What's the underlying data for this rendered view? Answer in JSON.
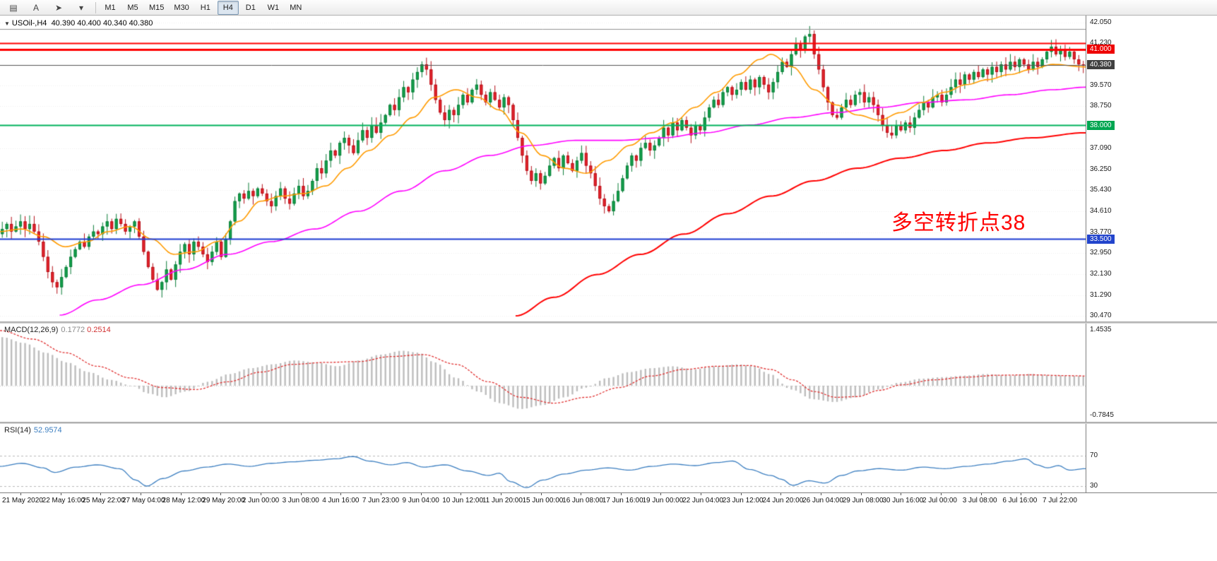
{
  "toolbar": {
    "icons": [
      {
        "name": "chart-window-icon",
        "glyph": "▤"
      },
      {
        "name": "text-annotation-icon",
        "glyph": "A"
      },
      {
        "name": "arrow-tool-icon",
        "glyph": "➤"
      },
      {
        "name": "tools-dropdown-icon",
        "glyph": "▾"
      }
    ],
    "timeframes": [
      "M1",
      "M5",
      "M15",
      "M30",
      "H1",
      "H4",
      "D1",
      "W1",
      "MN"
    ],
    "active_timeframe": "H4"
  },
  "chart_data": {
    "type": "candlestick",
    "collapse_icon": "▼",
    "symbol_title": "USOil-,H4",
    "ohlc_text": "40.390 40.400 40.340 40.380",
    "open": "40.390",
    "high": "40.400",
    "low": "40.340",
    "close": "40.380",
    "annotation": {
      "text": "多空转折点38",
      "color": "#ff0000"
    },
    "price_axis": {
      "min": 30.47,
      "max": 42.05,
      "labels": [
        42.05,
        41.23,
        39.57,
        38.75,
        37.09,
        36.25,
        35.43,
        34.61,
        33.77,
        32.95,
        32.13,
        31.29,
        30.47
      ]
    },
    "price_badges": [
      {
        "label": "41.000",
        "price": 41.0,
        "color": "#ee0000"
      },
      {
        "label": "40.380",
        "price": 40.38,
        "color": "#404040"
      },
      {
        "label": "38.000",
        "price": 38.0,
        "color": "#00a651"
      },
      {
        "label": "33.500",
        "price": 33.5,
        "color": "#2244cc"
      }
    ],
    "hlines": [
      {
        "price": 41.8,
        "color": "#909090",
        "width": 1
      },
      {
        "price": 41.23,
        "color": "#ff0000",
        "width": 2
      },
      {
        "price": 41.0,
        "color": "#ff0000",
        "width": 3
      },
      {
        "price": 38.0,
        "color": "#00b25c",
        "width": 2
      },
      {
        "price": 33.5,
        "color": "#1b3bd0",
        "width": 2
      }
    ],
    "current_price_line": {
      "price": 40.38,
      "color": "#555555"
    },
    "colors": {
      "bull": "#15a44e",
      "bull_edge": "#0b7c38",
      "bear": "#e8262e",
      "bear_edge": "#b40f18",
      "ma_fast": "#ff9b00",
      "ma_mid": "#ff00ff",
      "ma_slow": "#ff0000",
      "grid": "#ededed"
    },
    "candles": {
      "first_open": 33.7,
      "closes": [
        33.9,
        34.1,
        33.8,
        34.0,
        34.2,
        33.9,
        34.1,
        33.8,
        33.4,
        32.8,
        32.2,
        31.8,
        31.6,
        32.0,
        32.4,
        32.8,
        33.1,
        33.4,
        33.2,
        33.6,
        33.8,
        33.7,
        34.0,
        34.2,
        33.9,
        34.3,
        34.1,
        33.8,
        34.0,
        34.2,
        33.6,
        33.0,
        32.4,
        31.9,
        31.5,
        31.8,
        32.3,
        31.9,
        32.5,
        33.0,
        33.3,
        32.9,
        33.4,
        33.2,
        32.9,
        32.6,
        33.0,
        33.4,
        32.8,
        33.5,
        34.2,
        35.0,
        35.3,
        35.1,
        35.4,
        35.2,
        35.5,
        35.3,
        35.0,
        34.8,
        35.2,
        35.5,
        35.1,
        34.9,
        35.3,
        35.6,
        35.2,
        35.4,
        35.8,
        36.3,
        36.1,
        36.6,
        37.0,
        36.8,
        37.3,
        37.5,
        37.2,
        36.9,
        37.4,
        37.8,
        37.5,
        38.0,
        37.7,
        38.1,
        38.4,
        38.8,
        38.6,
        39.1,
        39.5,
        39.3,
        39.8,
        40.1,
        40.4,
        40.2,
        39.6,
        39.0,
        38.5,
        38.2,
        38.6,
        38.4,
        38.8,
        39.2,
        38.9,
        39.4,
        39.6,
        39.2,
        38.9,
        39.3,
        39.0,
        38.7,
        39.1,
        38.8,
        38.2,
        37.5,
        36.8,
        36.2,
        35.8,
        36.1,
        35.7,
        36.0,
        36.4,
        36.7,
        36.3,
        36.8,
        36.5,
        36.2,
        36.6,
        36.9,
        36.4,
        36.1,
        35.6,
        35.1,
        34.8,
        34.6,
        35.0,
        35.4,
        35.9,
        36.4,
        36.8,
        36.6,
        37.1,
        37.3,
        37.0,
        37.2,
        37.5,
        37.9,
        37.6,
        38.1,
        37.8,
        38.2,
        37.9,
        37.6,
        38.0,
        37.8,
        38.3,
        38.7,
        39.0,
        38.8,
        39.3,
        39.5,
        39.2,
        39.4,
        39.7,
        39.4,
        39.8,
        39.5,
        39.9,
        39.6,
        39.3,
        39.7,
        40.1,
        40.5,
        40.3,
        40.8,
        41.2,
        41.0,
        41.5,
        41.6,
        40.8,
        40.2,
        39.5,
        38.9,
        38.4,
        38.3,
        38.7,
        39.0,
        38.8,
        39.2,
        39.3,
        38.9,
        39.1,
        38.8,
        38.4,
        38.0,
        37.7,
        37.6,
        38.0,
        37.8,
        38.1,
        37.9,
        38.3,
        38.6,
        38.9,
        38.7,
        39.1,
        39.2,
        38.9,
        39.2,
        39.5,
        39.8,
        39.6,
        40.0,
        39.8,
        40.1,
        39.9,
        40.2,
        40.0,
        40.3,
        40.1,
        40.4,
        40.2,
        40.5,
        40.3,
        40.6,
        40.4,
        40.2,
        40.5,
        40.3,
        40.6,
        40.9,
        41.1,
        40.8,
        41.0,
        40.7,
        40.9,
        40.6,
        40.4,
        40.38
      ]
    },
    "ma_fast": [
      [
        0,
        33.8
      ],
      [
        0.02,
        33.9
      ],
      [
        0.04,
        33.6
      ],
      [
        0.06,
        33.2
      ],
      [
        0.08,
        33.4
      ],
      [
        0.1,
        33.8
      ],
      [
        0.12,
        34.0
      ],
      [
        0.14,
        33.5
      ],
      [
        0.16,
        32.9
      ],
      [
        0.18,
        33.0
      ],
      [
        0.2,
        33.4
      ],
      [
        0.22,
        34.2
      ],
      [
        0.24,
        35.0
      ],
      [
        0.26,
        35.2
      ],
      [
        0.28,
        35.3
      ],
      [
        0.3,
        35.6
      ],
      [
        0.32,
        36.3
      ],
      [
        0.34,
        37.0
      ],
      [
        0.36,
        37.6
      ],
      [
        0.38,
        38.3
      ],
      [
        0.4,
        39.1
      ],
      [
        0.42,
        39.4
      ],
      [
        0.44,
        39.1
      ],
      [
        0.46,
        38.6
      ],
      [
        0.48,
        37.7
      ],
      [
        0.5,
        36.8
      ],
      [
        0.52,
        36.3
      ],
      [
        0.54,
        36.1
      ],
      [
        0.56,
        36.6
      ],
      [
        0.58,
        37.2
      ],
      [
        0.6,
        37.7
      ],
      [
        0.62,
        38.1
      ],
      [
        0.64,
        38.7
      ],
      [
        0.66,
        39.3
      ],
      [
        0.68,
        40.0
      ],
      [
        0.7,
        40.6
      ],
      [
        0.71,
        40.8
      ],
      [
        0.73,
        40.3
      ],
      [
        0.75,
        39.4
      ],
      [
        0.77,
        38.8
      ],
      [
        0.79,
        38.4
      ],
      [
        0.81,
        38.2
      ],
      [
        0.83,
        38.5
      ],
      [
        0.85,
        38.9
      ],
      [
        0.87,
        39.3
      ],
      [
        0.89,
        39.6
      ],
      [
        0.91,
        39.8
      ],
      [
        0.93,
        40.0
      ],
      [
        0.95,
        40.2
      ],
      [
        0.97,
        40.4
      ],
      [
        1,
        40.3
      ]
    ],
    "ma_mid": [
      [
        0.055,
        30.5
      ],
      [
        0.09,
        31.1
      ],
      [
        0.13,
        31.7
      ],
      [
        0.17,
        32.3
      ],
      [
        0.21,
        32.9
      ],
      [
        0.25,
        33.4
      ],
      [
        0.29,
        33.9
      ],
      [
        0.33,
        34.6
      ],
      [
        0.37,
        35.4
      ],
      [
        0.41,
        36.2
      ],
      [
        0.45,
        36.8
      ],
      [
        0.49,
        37.2
      ],
      [
        0.53,
        37.4
      ],
      [
        0.57,
        37.4
      ],
      [
        0.61,
        37.5
      ],
      [
        0.65,
        37.7
      ],
      [
        0.69,
        38.0
      ],
      [
        0.73,
        38.3
      ],
      [
        0.77,
        38.5
      ],
      [
        0.81,
        38.7
      ],
      [
        0.85,
        38.9
      ],
      [
        0.89,
        39.0
      ],
      [
        0.93,
        39.2
      ],
      [
        0.97,
        39.4
      ],
      [
        1,
        39.5
      ]
    ],
    "ma_slow": [
      [
        0.475,
        30.47
      ],
      [
        0.51,
        31.2
      ],
      [
        0.55,
        32.1
      ],
      [
        0.59,
        32.9
      ],
      [
        0.63,
        33.7
      ],
      [
        0.67,
        34.5
      ],
      [
        0.71,
        35.2
      ],
      [
        0.75,
        35.8
      ],
      [
        0.79,
        36.3
      ],
      [
        0.83,
        36.7
      ],
      [
        0.87,
        37.0
      ],
      [
        0.91,
        37.3
      ],
      [
        0.95,
        37.5
      ],
      [
        1,
        37.7
      ]
    ],
    "time_labels": [
      "21 May 2020",
      "22 May 16:00",
      "25 May 22:00",
      "27 May 04:00",
      "28 May 12:00",
      "29 May 20:00",
      "2 Jun 00:00",
      "3 Jun 08:00",
      "4 Jun 16:00",
      "7 Jun 23:00",
      "9 Jun 04:00",
      "10 Jun 12:00",
      "11 Jun 20:00",
      "15 Jun 00:00",
      "16 Jun 08:00",
      "17 Jun 16:00",
      "19 Jun 00:00",
      "22 Jun 04:00",
      "23 Jun 12:00",
      "24 Jun 20:00",
      "26 Jun 04:00",
      "29 Jun 08:00",
      "30 Jun 16:00",
      "2 Jul 00:00",
      "3 Jul 08:00",
      "6 Jul 16:00",
      "7 Jul 22:00"
    ]
  },
  "macd": {
    "label": "MACD(12,26,9)",
    "value": "0.1772",
    "signal_value": "0.2514",
    "axis_max": 1.4535,
    "axis_min": -0.7845,
    "axis_max_label": "1.4535",
    "axis_min_label": "-0.7845",
    "hist": [
      [
        0,
        1.25
      ],
      [
        0.02,
        1.1
      ],
      [
        0.04,
        0.85
      ],
      [
        0.06,
        0.6
      ],
      [
        0.08,
        0.35
      ],
      [
        0.1,
        0.15
      ],
      [
        0.12,
        0.0
      ],
      [
        0.135,
        -0.2
      ],
      [
        0.15,
        -0.3
      ],
      [
        0.17,
        -0.15
      ],
      [
        0.19,
        0.1
      ],
      [
        0.21,
        0.3
      ],
      [
        0.23,
        0.45
      ],
      [
        0.25,
        0.55
      ],
      [
        0.27,
        0.65
      ],
      [
        0.29,
        0.6
      ],
      [
        0.31,
        0.5
      ],
      [
        0.33,
        0.65
      ],
      [
        0.35,
        0.8
      ],
      [
        0.37,
        0.9
      ],
      [
        0.385,
        0.85
      ],
      [
        0.4,
        0.6
      ],
      [
        0.42,
        0.2
      ],
      [
        0.44,
        -0.15
      ],
      [
        0.46,
        -0.45
      ],
      [
        0.48,
        -0.6
      ],
      [
        0.5,
        -0.5
      ],
      [
        0.52,
        -0.3
      ],
      [
        0.54,
        -0.05
      ],
      [
        0.56,
        0.2
      ],
      [
        0.58,
        0.35
      ],
      [
        0.6,
        0.45
      ],
      [
        0.62,
        0.5
      ],
      [
        0.64,
        0.42
      ],
      [
        0.66,
        0.5
      ],
      [
        0.68,
        0.55
      ],
      [
        0.695,
        0.5
      ],
      [
        0.71,
        0.3
      ],
      [
        0.73,
        -0.1
      ],
      [
        0.75,
        -0.35
      ],
      [
        0.77,
        -0.42
      ],
      [
        0.79,
        -0.3
      ],
      [
        0.81,
        -0.1
      ],
      [
        0.83,
        0.08
      ],
      [
        0.85,
        0.18
      ],
      [
        0.87,
        0.22
      ],
      [
        0.89,
        0.26
      ],
      [
        0.91,
        0.3
      ],
      [
        0.93,
        0.26
      ],
      [
        0.95,
        0.3
      ],
      [
        0.97,
        0.27
      ],
      [
        1,
        0.25
      ]
    ],
    "signal": [
      [
        0,
        1.42
      ],
      [
        0.03,
        1.2
      ],
      [
        0.06,
        0.85
      ],
      [
        0.09,
        0.5
      ],
      [
        0.12,
        0.2
      ],
      [
        0.15,
        -0.05
      ],
      [
        0.18,
        -0.1
      ],
      [
        0.21,
        0.1
      ],
      [
        0.24,
        0.35
      ],
      [
        0.27,
        0.55
      ],
      [
        0.3,
        0.6
      ],
      [
        0.33,
        0.62
      ],
      [
        0.36,
        0.75
      ],
      [
        0.39,
        0.8
      ],
      [
        0.42,
        0.55
      ],
      [
        0.45,
        0.1
      ],
      [
        0.48,
        -0.3
      ],
      [
        0.51,
        -0.45
      ],
      [
        0.54,
        -0.3
      ],
      [
        0.57,
        -0.05
      ],
      [
        0.6,
        0.25
      ],
      [
        0.63,
        0.42
      ],
      [
        0.66,
        0.5
      ],
      [
        0.69,
        0.52
      ],
      [
        0.71,
        0.42
      ],
      [
        0.73,
        0.15
      ],
      [
        0.75,
        -0.15
      ],
      [
        0.77,
        -0.3
      ],
      [
        0.79,
        -0.28
      ],
      [
        0.81,
        -0.12
      ],
      [
        0.83,
        0.02
      ],
      [
        0.86,
        0.15
      ],
      [
        0.89,
        0.22
      ],
      [
        0.92,
        0.27
      ],
      [
        0.95,
        0.28
      ],
      [
        0.98,
        0.26
      ],
      [
        1,
        0.2514
      ]
    ]
  },
  "rsi": {
    "label": "RSI(14)",
    "value": "52.9574",
    "levels": [
      {
        "value": 70,
        "label": "70"
      },
      {
        "value": 30,
        "label": "30"
      }
    ],
    "points": [
      [
        0,
        56
      ],
      [
        0.02,
        60
      ],
      [
        0.04,
        54
      ],
      [
        0.05,
        48
      ],
      [
        0.07,
        55
      ],
      [
        0.09,
        58
      ],
      [
        0.11,
        53
      ],
      [
        0.125,
        38
      ],
      [
        0.135,
        30
      ],
      [
        0.15,
        40
      ],
      [
        0.17,
        50
      ],
      [
        0.19,
        55
      ],
      [
        0.21,
        59
      ],
      [
        0.23,
        56
      ],
      [
        0.25,
        60
      ],
      [
        0.27,
        62
      ],
      [
        0.29,
        64
      ],
      [
        0.31,
        66
      ],
      [
        0.325,
        69
      ],
      [
        0.34,
        63
      ],
      [
        0.36,
        58
      ],
      [
        0.375,
        61
      ],
      [
        0.39,
        55
      ],
      [
        0.41,
        58
      ],
      [
        0.43,
        50
      ],
      [
        0.45,
        44
      ],
      [
        0.46,
        47
      ],
      [
        0.47,
        36
      ],
      [
        0.485,
        28
      ],
      [
        0.5,
        38
      ],
      [
        0.52,
        46
      ],
      [
        0.54,
        51
      ],
      [
        0.56,
        54
      ],
      [
        0.58,
        51
      ],
      [
        0.6,
        56
      ],
      [
        0.62,
        59
      ],
      [
        0.64,
        57
      ],
      [
        0.66,
        61
      ],
      [
        0.675,
        63
      ],
      [
        0.69,
        52
      ],
      [
        0.71,
        44
      ],
      [
        0.72,
        39
      ],
      [
        0.73,
        31
      ],
      [
        0.745,
        37
      ],
      [
        0.76,
        34
      ],
      [
        0.775,
        44
      ],
      [
        0.79,
        50
      ],
      [
        0.81,
        53
      ],
      [
        0.83,
        51
      ],
      [
        0.85,
        55
      ],
      [
        0.87,
        53
      ],
      [
        0.89,
        56
      ],
      [
        0.91,
        59
      ],
      [
        0.93,
        63
      ],
      [
        0.945,
        66
      ],
      [
        0.955,
        58
      ],
      [
        0.965,
        54
      ],
      [
        0.975,
        57
      ],
      [
        0.985,
        51
      ],
      [
        1,
        53
      ]
    ]
  }
}
